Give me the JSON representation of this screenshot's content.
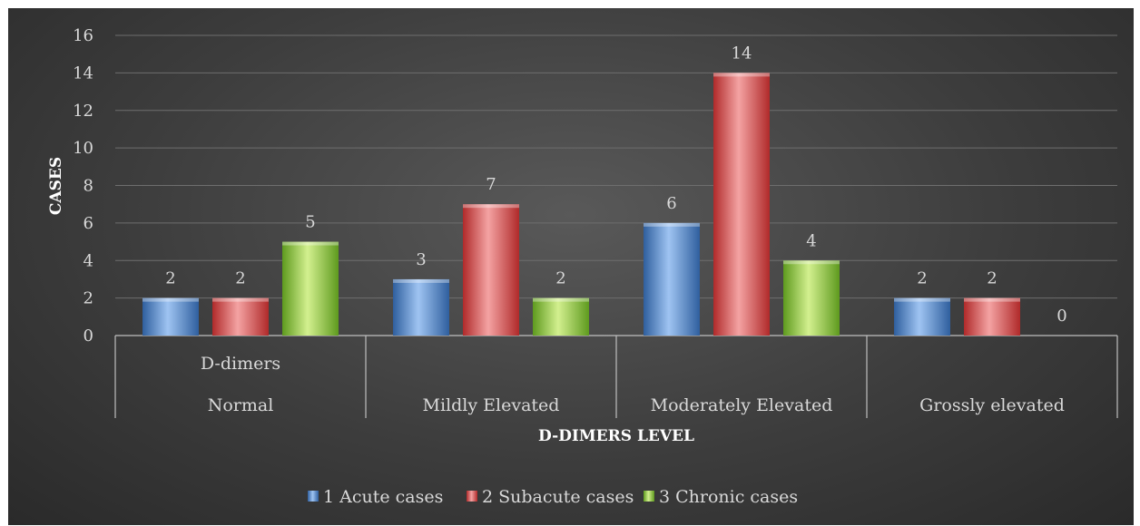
{
  "chart_data": {
    "type": "bar",
    "title": "",
    "xlabel": "D-DIMERS LEVEL",
    "ylabel": "CASES",
    "group_label": "D-dimers",
    "categories": [
      "Normal",
      "Mildly Elevated",
      "Moderately Elevated",
      "Grossly elevated"
    ],
    "series": [
      {
        "name": "1 Acute cases",
        "values": [
          2,
          3,
          6,
          2
        ],
        "color": "#4f81bd"
      },
      {
        "name": "2 Subacute cases",
        "values": [
          2,
          7,
          14,
          2
        ],
        "color": "#d04a4a"
      },
      {
        "name": "3 Chronic cases",
        "values": [
          5,
          2,
          4,
          0
        ],
        "color": "#8cc23c"
      }
    ],
    "ylim": [
      0,
      16
    ],
    "yticks": [
      0,
      2,
      4,
      6,
      8,
      10,
      12,
      14,
      16
    ],
    "grid": true,
    "legend": "bottom",
    "data_labels": true
  }
}
